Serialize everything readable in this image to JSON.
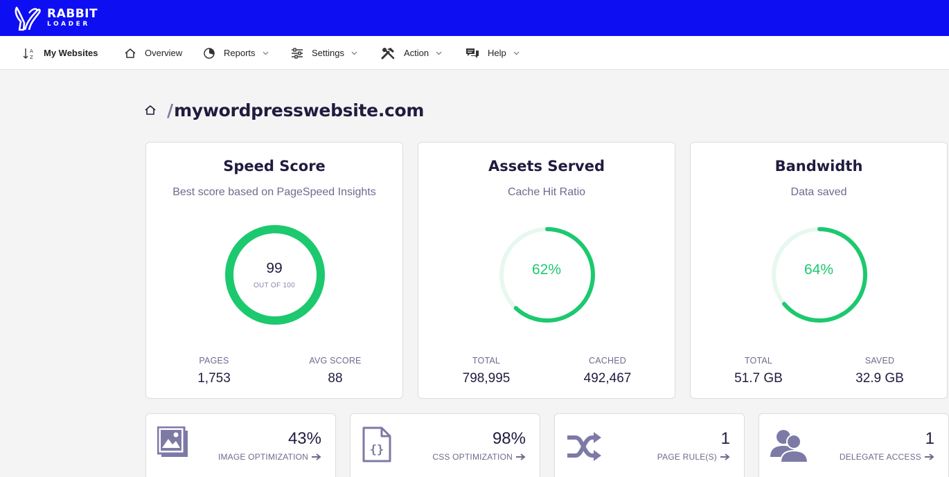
{
  "app": {
    "logo_line1": "RABBIT",
    "logo_line2": "LOADER",
    "brand_color": "#0e0ef3",
    "accent_color": "#1cc96e"
  },
  "nav": {
    "my_websites": "My Websites",
    "overview": "Overview",
    "reports": "Reports",
    "settings": "Settings",
    "action": "Action",
    "help": "Help"
  },
  "breadcrumb": {
    "slash": "/",
    "domain": "mywordpresswebsite.com"
  },
  "cards": {
    "speed": {
      "title": "Speed Score",
      "subtitle": "Best score based on PageSpeed Insights",
      "value": "99",
      "caption": "OUT OF 100",
      "progress": 0.99,
      "stat1_label": "PAGES",
      "stat1_value": "1,753",
      "stat2_label": "AVG SCORE",
      "stat2_value": "88"
    },
    "assets": {
      "title": "Assets Served",
      "subtitle": "Cache Hit Ratio",
      "value": "62%",
      "progress": 0.62,
      "stat1_label": "TOTAL",
      "stat1_value": "798,995",
      "stat2_label": "CACHED",
      "stat2_value": "492,467"
    },
    "bandwidth": {
      "title": "Bandwidth",
      "subtitle": "Data saved",
      "value": "64%",
      "progress": 0.64,
      "stat1_label": "TOTAL",
      "stat1_value": "51.7 GB",
      "stat2_label": "SAVED",
      "stat2_value": "32.9 GB"
    }
  },
  "features": {
    "image": {
      "value": "43%",
      "label": "IMAGE OPTIMIZATION",
      "icon": "image-icon"
    },
    "css": {
      "value": "98%",
      "label": "CSS OPTIMIZATION",
      "icon": "code-file-icon"
    },
    "rules": {
      "value": "1",
      "label": "PAGE RULE(S)",
      "icon": "shuffle-icon"
    },
    "delegate": {
      "value": "1",
      "label": "DELEGATE ACCESS",
      "icon": "users-icon"
    }
  }
}
